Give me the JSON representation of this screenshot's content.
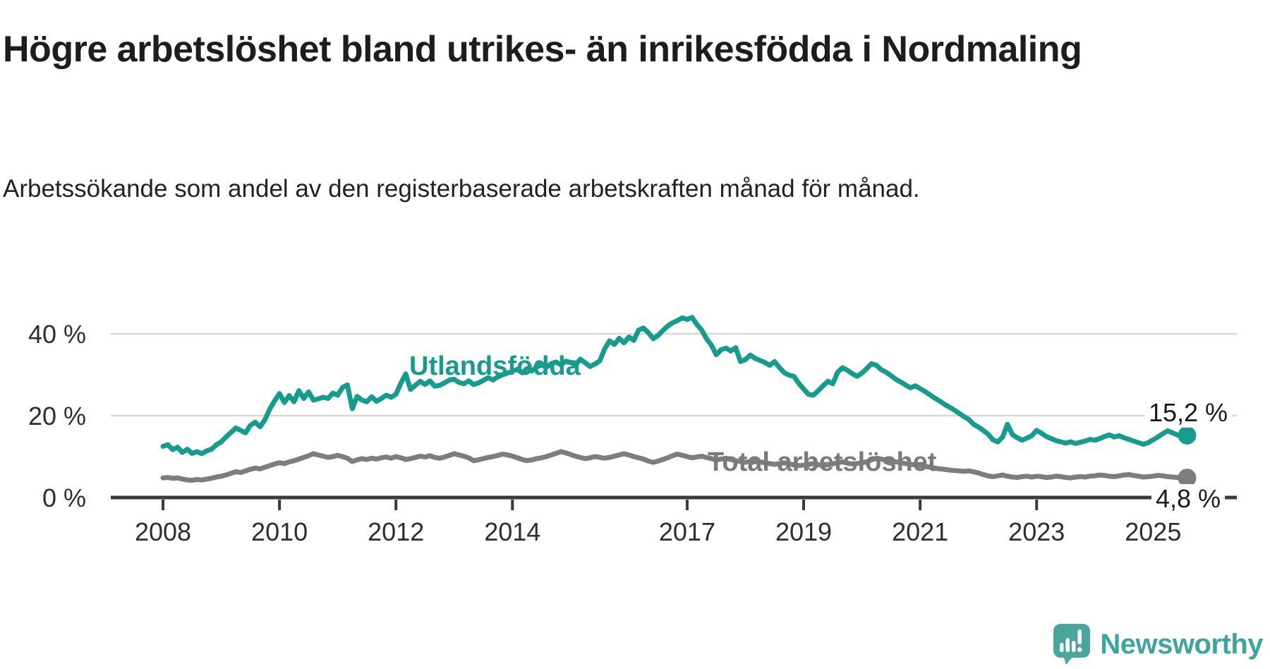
{
  "chart_data": {
    "type": "line",
    "title": "Högre arbetslöshet bland utrikes- än inrikesfödda i Nordmaling",
    "subtitle": "Arbetssökande som andel av den registerbaserade arbetskraften månad för månad.",
    "x_start": "2008-01",
    "x_end": "2025-08",
    "x_frequency": "monthly",
    "x_tick_years": [
      2008,
      2010,
      2012,
      2014,
      2017,
      2019,
      2021,
      2023,
      2025
    ],
    "x_tick_labels": [
      "2008",
      "2010",
      "2012",
      "2014",
      "2017",
      "2019",
      "2021",
      "2023",
      "2025"
    ],
    "y_ticks": [
      0,
      20,
      40
    ],
    "y_tick_labels": [
      "0 %",
      "20 %",
      "40 %"
    ],
    "ylim": [
      0,
      46
    ],
    "grid": "horizontal",
    "legend_position": "inline-labels",
    "series": [
      {
        "name": "Utlandsfödda",
        "color": "#169b8d",
        "end_label": "15,2 %",
        "end_value": 15.2,
        "values": [
          12.5,
          12.9,
          11.7,
          12.3,
          11.0,
          11.8,
          10.8,
          11.2,
          10.7,
          11.4,
          11.8,
          12.9,
          13.6,
          14.8,
          15.9,
          17.0,
          16.4,
          15.8,
          17.6,
          18.4,
          17.3,
          19.0,
          21.6,
          23.6,
          25.4,
          23.2,
          24.9,
          23.4,
          26.1,
          24.2,
          25.8,
          23.8,
          24.1,
          24.5,
          24.2,
          25.5,
          25.0,
          26.9,
          27.5,
          21.7,
          24.7,
          23.8,
          23.4,
          24.6,
          23.5,
          24.2,
          25.0,
          24.5,
          25.2,
          27.9,
          30.2,
          26.4,
          27.4,
          28.4,
          27.6,
          28.5,
          27.2,
          27.4,
          28.0,
          28.7,
          28.9,
          28.1,
          27.8,
          28.5,
          27.6,
          28.0,
          28.6,
          29.3,
          28.7,
          29.5,
          30.0,
          30.4,
          30.9,
          31.3,
          30.5,
          31.5,
          30.9,
          31.9,
          32.4,
          31.8,
          32.7,
          33.1,
          32.4,
          33.3,
          33.0,
          32.4,
          33.8,
          32.9,
          32.0,
          32.6,
          33.4,
          36.3,
          38.3,
          37.4,
          38.9,
          37.8,
          39.2,
          38.4,
          40.9,
          41.4,
          40.3,
          38.8,
          39.6,
          40.8,
          41.9,
          42.7,
          43.2,
          43.9,
          43.5,
          44.0,
          42.3,
          40.9,
          38.8,
          37.2,
          34.9,
          36.1,
          36.5,
          35.8,
          36.6,
          33.2,
          33.7,
          34.8,
          34.0,
          33.5,
          33.0,
          32.3,
          33.2,
          31.8,
          30.5,
          29.9,
          29.6,
          27.9,
          26.5,
          25.2,
          25.0,
          26.1,
          27.3,
          28.4,
          27.8,
          30.6,
          31.7,
          31.1,
          30.3,
          29.6,
          30.4,
          31.5,
          32.7,
          32.3,
          31.2,
          30.6,
          29.8,
          28.9,
          28.2,
          27.5,
          26.8,
          27.3,
          26.6,
          25.9,
          25.1,
          24.3,
          23.6,
          22.8,
          22.1,
          21.4,
          20.6,
          19.8,
          19.1,
          17.9,
          17.2,
          16.4,
          15.5,
          14.1,
          13.6,
          14.8,
          17.9,
          15.4,
          14.6,
          14.0,
          14.5,
          15.1,
          16.4,
          15.7,
          14.9,
          14.4,
          13.9,
          13.6,
          13.3,
          13.6,
          13.2,
          13.5,
          13.8,
          14.2,
          14.0,
          14.4,
          14.9,
          15.3,
          14.8,
          15.1,
          14.6,
          14.2,
          13.8,
          13.4,
          13.0,
          13.4,
          14.1,
          14.8,
          15.6,
          16.3,
          15.8,
          15.3,
          14.9,
          15.2
        ]
      },
      {
        "name": "Total arbetslöshet",
        "color": "#7d7d7d",
        "end_label": "4,8 %",
        "end_value": 4.8,
        "values": [
          4.8,
          4.9,
          4.7,
          4.8,
          4.5,
          4.3,
          4.2,
          4.4,
          4.3,
          4.5,
          4.7,
          5.0,
          5.2,
          5.5,
          5.9,
          6.3,
          6.1,
          6.5,
          6.9,
          7.2,
          7.0,
          7.4,
          7.8,
          8.2,
          8.5,
          8.3,
          8.7,
          9.0,
          9.4,
          9.8,
          10.2,
          10.7,
          10.4,
          10.1,
          9.8,
          10.0,
          10.3,
          10.0,
          9.6,
          8.8,
          9.2,
          9.5,
          9.3,
          9.6,
          9.4,
          9.7,
          9.9,
          9.6,
          10.0,
          9.7,
          9.3,
          9.5,
          9.8,
          10.1,
          9.9,
          10.2,
          9.8,
          9.6,
          9.9,
          10.3,
          10.7,
          10.4,
          10.1,
          9.7,
          9.0,
          9.2,
          9.5,
          9.8,
          10.0,
          10.3,
          10.6,
          10.4,
          10.1,
          9.7,
          9.3,
          9.0,
          9.2,
          9.5,
          9.7,
          10.0,
          10.4,
          10.8,
          11.2,
          10.9,
          10.5,
          10.1,
          9.8,
          9.5,
          9.7,
          10.0,
          9.8,
          9.6,
          9.8,
          10.1,
          10.4,
          10.7,
          10.4,
          10.0,
          9.7,
          9.4,
          8.9,
          8.6,
          8.9,
          9.3,
          9.7,
          10.2,
          10.6,
          10.3,
          10.0,
          9.7,
          9.9,
          10.1,
          9.8,
          9.5,
          9.2,
          9.4,
          9.6,
          9.3,
          9.0,
          8.8,
          8.6,
          8.8,
          9.0,
          8.7,
          8.5,
          8.3,
          8.1,
          8.3,
          8.5,
          8.2,
          8.0,
          7.8,
          7.9,
          8.1,
          8.3,
          8.0,
          7.8,
          8.0,
          8.2,
          8.5,
          8.7,
          8.4,
          8.2,
          8.3,
          8.5,
          8.7,
          9.2,
          9.6,
          9.4,
          9.1,
          8.9,
          8.7,
          8.5,
          8.3,
          8.1,
          8.0,
          7.8,
          7.6,
          7.4,
          7.2,
          7.0,
          6.9,
          6.7,
          6.6,
          6.5,
          6.4,
          6.5,
          6.3,
          6.0,
          5.6,
          5.3,
          5.1,
          5.3,
          5.5,
          5.2,
          5.0,
          4.9,
          5.1,
          5.2,
          5.0,
          5.2,
          5.1,
          4.9,
          5.0,
          5.2,
          5.1,
          4.9,
          4.8,
          5.0,
          5.1,
          5.0,
          5.2,
          5.3,
          5.5,
          5.4,
          5.2,
          5.1,
          5.3,
          5.5,
          5.6,
          5.4,
          5.2,
          5.0,
          5.1,
          5.2,
          5.4,
          5.3,
          5.1,
          5.0,
          4.9,
          4.7,
          4.8
        ]
      }
    ]
  },
  "branding": {
    "wordmark": "Newsworthy",
    "icon_color": "#4aa69d",
    "text_color": "#3da59b"
  }
}
